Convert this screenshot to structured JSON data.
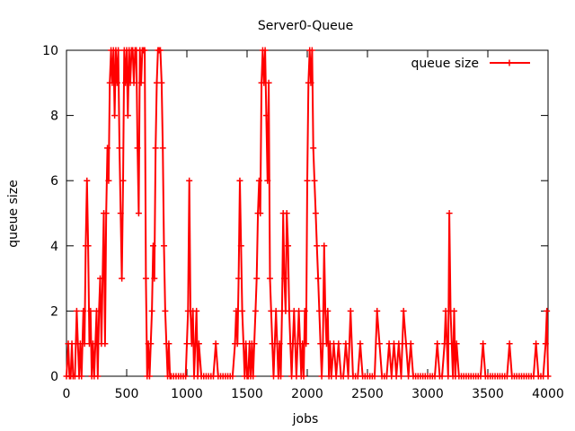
{
  "chart_data": {
    "type": "line",
    "title": "Server0-Queue",
    "xlabel": "jobs",
    "ylabel": "queue size",
    "xlim": [
      0,
      4000
    ],
    "ylim": [
      0,
      10
    ],
    "xticks": [
      0,
      500,
      1000,
      1500,
      2000,
      2500,
      3000,
      3500,
      4000
    ],
    "yticks": [
      0,
      2,
      4,
      6,
      8,
      10
    ],
    "grid": false,
    "legend_position": "top-right",
    "series": [
      {
        "name": "queue size",
        "color": "#ff0000",
        "marker": "plus",
        "points": [
          [
            0,
            0
          ],
          [
            15,
            1
          ],
          [
            25,
            0
          ],
          [
            35,
            0
          ],
          [
            45,
            1
          ],
          [
            55,
            0
          ],
          [
            70,
            0
          ],
          [
            85,
            2
          ],
          [
            95,
            1
          ],
          [
            105,
            0
          ],
          [
            115,
            1
          ],
          [
            125,
            0
          ],
          [
            140,
            2
          ],
          [
            150,
            1
          ],
          [
            160,
            4
          ],
          [
            170,
            6
          ],
          [
            180,
            4
          ],
          [
            190,
            1
          ],
          [
            200,
            2
          ],
          [
            210,
            0
          ],
          [
            220,
            1
          ],
          [
            230,
            0
          ],
          [
            240,
            1
          ],
          [
            250,
            2
          ],
          [
            260,
            0
          ],
          [
            270,
            2
          ],
          [
            280,
            3
          ],
          [
            290,
            1
          ],
          [
            300,
            3
          ],
          [
            310,
            5
          ],
          [
            320,
            1
          ],
          [
            330,
            5
          ],
          [
            340,
            7
          ],
          [
            350,
            6
          ],
          [
            360,
            9
          ],
          [
            370,
            10
          ],
          [
            380,
            9
          ],
          [
            390,
            10
          ],
          [
            400,
            8
          ],
          [
            410,
            10
          ],
          [
            420,
            9
          ],
          [
            430,
            10
          ],
          [
            440,
            7
          ],
          [
            450,
            5
          ],
          [
            460,
            3
          ],
          [
            470,
            6
          ],
          [
            480,
            10
          ],
          [
            490,
            9
          ],
          [
            500,
            10
          ],
          [
            510,
            8
          ],
          [
            520,
            10
          ],
          [
            530,
            9
          ],
          [
            540,
            10
          ],
          [
            550,
            10
          ],
          [
            560,
            9
          ],
          [
            570,
            10
          ],
          [
            580,
            10
          ],
          [
            590,
            7
          ],
          [
            600,
            5
          ],
          [
            610,
            10
          ],
          [
            620,
            9
          ],
          [
            630,
            10
          ],
          [
            640,
            10
          ],
          [
            650,
            10
          ],
          [
            660,
            3
          ],
          [
            670,
            0
          ],
          [
            680,
            1
          ],
          [
            690,
            0
          ],
          [
            700,
            1
          ],
          [
            710,
            2
          ],
          [
            720,
            4
          ],
          [
            730,
            3
          ],
          [
            740,
            7
          ],
          [
            750,
            9
          ],
          [
            760,
            10
          ],
          [
            770,
            10
          ],
          [
            780,
            10
          ],
          [
            790,
            9
          ],
          [
            800,
            7
          ],
          [
            810,
            4
          ],
          [
            820,
            2
          ],
          [
            830,
            1
          ],
          [
            840,
            0
          ],
          [
            850,
            1
          ],
          [
            860,
            0
          ],
          [
            870,
            0
          ],
          [
            890,
            0
          ],
          [
            910,
            0
          ],
          [
            930,
            0
          ],
          [
            950,
            0
          ],
          [
            970,
            0
          ],
          [
            990,
            0
          ],
          [
            1000,
            1
          ],
          [
            1010,
            2
          ],
          [
            1020,
            6
          ],
          [
            1030,
            2
          ],
          [
            1040,
            1
          ],
          [
            1050,
            2
          ],
          [
            1060,
            0
          ],
          [
            1070,
            1
          ],
          [
            1080,
            2
          ],
          [
            1090,
            0
          ],
          [
            1100,
            1
          ],
          [
            1120,
            0
          ],
          [
            1140,
            0
          ],
          [
            1160,
            0
          ],
          [
            1180,
            0
          ],
          [
            1200,
            0
          ],
          [
            1220,
            0
          ],
          [
            1240,
            1
          ],
          [
            1260,
            0
          ],
          [
            1280,
            0
          ],
          [
            1300,
            0
          ],
          [
            1320,
            0
          ],
          [
            1340,
            0
          ],
          [
            1360,
            0
          ],
          [
            1380,
            0
          ],
          [
            1400,
            1
          ],
          [
            1410,
            2
          ],
          [
            1420,
            1
          ],
          [
            1430,
            3
          ],
          [
            1440,
            6
          ],
          [
            1450,
            4
          ],
          [
            1460,
            2
          ],
          [
            1470,
            1
          ],
          [
            1480,
            0
          ],
          [
            1490,
            1
          ],
          [
            1500,
            0
          ],
          [
            1510,
            0
          ],
          [
            1520,
            1
          ],
          [
            1530,
            0
          ],
          [
            1540,
            1
          ],
          [
            1550,
            0
          ],
          [
            1560,
            1
          ],
          [
            1570,
            2
          ],
          [
            1580,
            3
          ],
          [
            1590,
            5
          ],
          [
            1600,
            6
          ],
          [
            1610,
            5
          ],
          [
            1620,
            9
          ],
          [
            1630,
            10
          ],
          [
            1640,
            9
          ],
          [
            1650,
            10
          ],
          [
            1660,
            8
          ],
          [
            1670,
            6
          ],
          [
            1680,
            9
          ],
          [
            1690,
            3
          ],
          [
            1700,
            2
          ],
          [
            1710,
            1
          ],
          [
            1720,
            0
          ],
          [
            1730,
            1
          ],
          [
            1740,
            2
          ],
          [
            1750,
            1
          ],
          [
            1760,
            0
          ],
          [
            1770,
            1
          ],
          [
            1780,
            0
          ],
          [
            1790,
            2
          ],
          [
            1800,
            5
          ],
          [
            1810,
            3
          ],
          [
            1820,
            2
          ],
          [
            1830,
            5
          ],
          [
            1840,
            4
          ],
          [
            1850,
            2
          ],
          [
            1860,
            1
          ],
          [
            1870,
            0
          ],
          [
            1880,
            1
          ],
          [
            1890,
            2
          ],
          [
            1900,
            1
          ],
          [
            1910,
            0
          ],
          [
            1920,
            1
          ],
          [
            1930,
            2
          ],
          [
            1940,
            1
          ],
          [
            1950,
            0
          ],
          [
            1960,
            1
          ],
          [
            1970,
            0
          ],
          [
            1980,
            2
          ],
          [
            1990,
            1
          ],
          [
            2000,
            6
          ],
          [
            2010,
            9
          ],
          [
            2020,
            10
          ],
          [
            2030,
            9
          ],
          [
            2040,
            10
          ],
          [
            2050,
            7
          ],
          [
            2060,
            6
          ],
          [
            2070,
            5
          ],
          [
            2080,
            4
          ],
          [
            2090,
            3
          ],
          [
            2100,
            2
          ],
          [
            2110,
            1
          ],
          [
            2120,
            0
          ],
          [
            2130,
            1
          ],
          [
            2140,
            4
          ],
          [
            2150,
            2
          ],
          [
            2160,
            1
          ],
          [
            2170,
            2
          ],
          [
            2180,
            0
          ],
          [
            2190,
            1
          ],
          [
            2200,
            0
          ],
          [
            2220,
            1
          ],
          [
            2240,
            0
          ],
          [
            2260,
            1
          ],
          [
            2280,
            0
          ],
          [
            2300,
            0
          ],
          [
            2320,
            1
          ],
          [
            2340,
            0
          ],
          [
            2360,
            2
          ],
          [
            2380,
            0
          ],
          [
            2400,
            0
          ],
          [
            2420,
            0
          ],
          [
            2440,
            1
          ],
          [
            2460,
            0
          ],
          [
            2480,
            0
          ],
          [
            2500,
            0
          ],
          [
            2520,
            0
          ],
          [
            2540,
            0
          ],
          [
            2560,
            0
          ],
          [
            2580,
            2
          ],
          [
            2600,
            1
          ],
          [
            2620,
            0
          ],
          [
            2640,
            0
          ],
          [
            2660,
            0
          ],
          [
            2680,
            1
          ],
          [
            2700,
            0
          ],
          [
            2720,
            1
          ],
          [
            2740,
            0
          ],
          [
            2760,
            1
          ],
          [
            2780,
            0
          ],
          [
            2800,
            2
          ],
          [
            2820,
            1
          ],
          [
            2840,
            0
          ],
          [
            2860,
            1
          ],
          [
            2880,
            0
          ],
          [
            2900,
            0
          ],
          [
            2920,
            0
          ],
          [
            2940,
            0
          ],
          [
            2960,
            0
          ],
          [
            2980,
            0
          ],
          [
            3000,
            0
          ],
          [
            3020,
            0
          ],
          [
            3040,
            0
          ],
          [
            3060,
            0
          ],
          [
            3080,
            1
          ],
          [
            3100,
            0
          ],
          [
            3120,
            0
          ],
          [
            3140,
            1
          ],
          [
            3150,
            2
          ],
          [
            3160,
            1
          ],
          [
            3170,
            0
          ],
          [
            3180,
            5
          ],
          [
            3190,
            2
          ],
          [
            3200,
            1
          ],
          [
            3210,
            0
          ],
          [
            3220,
            2
          ],
          [
            3230,
            0
          ],
          [
            3240,
            1
          ],
          [
            3260,
            0
          ],
          [
            3280,
            0
          ],
          [
            3300,
            0
          ],
          [
            3320,
            0
          ],
          [
            3340,
            0
          ],
          [
            3360,
            0
          ],
          [
            3380,
            0
          ],
          [
            3400,
            0
          ],
          [
            3420,
            0
          ],
          [
            3440,
            0
          ],
          [
            3460,
            1
          ],
          [
            3480,
            0
          ],
          [
            3500,
            0
          ],
          [
            3520,
            0
          ],
          [
            3540,
            0
          ],
          [
            3560,
            0
          ],
          [
            3580,
            0
          ],
          [
            3600,
            0
          ],
          [
            3620,
            0
          ],
          [
            3640,
            0
          ],
          [
            3660,
            0
          ],
          [
            3680,
            1
          ],
          [
            3700,
            0
          ],
          [
            3720,
            0
          ],
          [
            3740,
            0
          ],
          [
            3760,
            0
          ],
          [
            3780,
            0
          ],
          [
            3800,
            0
          ],
          [
            3820,
            0
          ],
          [
            3840,
            0
          ],
          [
            3860,
            0
          ],
          [
            3880,
            0
          ],
          [
            3900,
            1
          ],
          [
            3920,
            0
          ],
          [
            3940,
            0
          ],
          [
            3960,
            0
          ],
          [
            3980,
            1
          ],
          [
            3990,
            2
          ],
          [
            4000,
            0
          ]
        ]
      }
    ]
  }
}
